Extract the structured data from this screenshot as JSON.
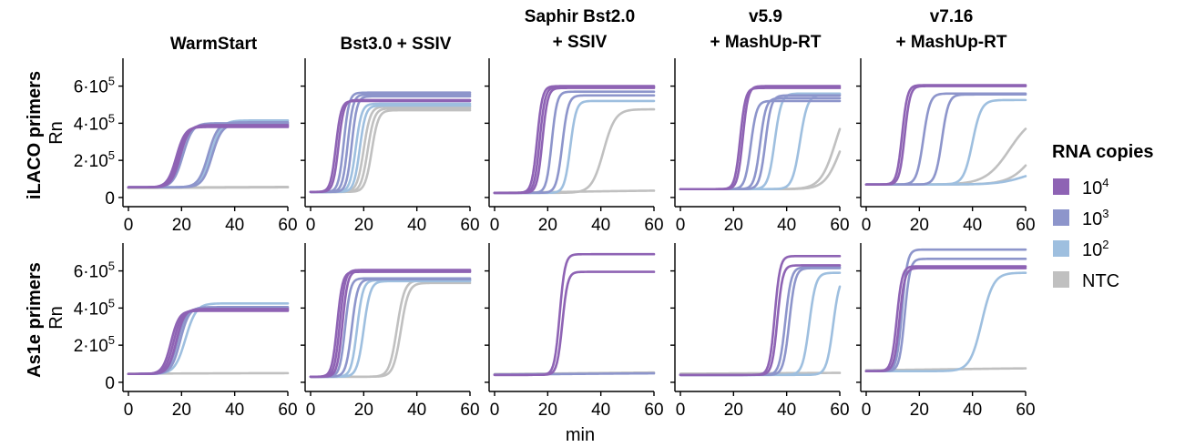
{
  "chart_data": {
    "type": "line",
    "xlabel": "min",
    "ylabel": "Rn",
    "xlim": [
      0,
      60
    ],
    "ylim": [
      -20000,
      750000
    ],
    "x_ticks": [
      "0",
      "20",
      "40",
      "60"
    ],
    "y_ticks": [
      {
        "value": 0,
        "base": "0",
        "exp": ""
      },
      {
        "value": 200000,
        "base": "2·10",
        "exp": "5"
      },
      {
        "value": 400000,
        "base": "4·10",
        "exp": "5"
      },
      {
        "value": 600000,
        "base": "6·10",
        "exp": "5"
      }
    ],
    "grid": false,
    "legend": {
      "title": "RNA copies",
      "placement": "right",
      "entries": [
        {
          "key": "1e4",
          "base": "10",
          "exp": "4",
          "color": "#8e63b4"
        },
        {
          "key": "1e3",
          "base": "10",
          "exp": "3",
          "color": "#8d95cb"
        },
        {
          "key": "1e2",
          "base": "10",
          "exp": "2",
          "color": "#9ebfdf"
        },
        {
          "key": "NTC",
          "base": "NTC",
          "exp": "",
          "color": "#c0c0c0"
        }
      ]
    },
    "columns": [
      {
        "title": [
          "WarmStart"
        ]
      },
      {
        "title": [
          "Bst3.0 + SSIV"
        ]
      },
      {
        "title": [
          "Saphir Bst2.0",
          "+ SSIV"
        ]
      },
      {
        "title": [
          "v5.9",
          "+ MashUp-RT"
        ]
      },
      {
        "title": [
          "v7.16",
          "+ MashUp-RT"
        ]
      }
    ],
    "rows": [
      "iLACO primers",
      "As1e primers"
    ],
    "panels": [
      {
        "row": 0,
        "col": 0,
        "curves": [
          {
            "g": "1e4",
            "base": 55000,
            "top": 380000,
            "mid": 18.0,
            "k": 0.6
          },
          {
            "g": "1e4",
            "base": 55000,
            "top": 385000,
            "mid": 18.8,
            "k": 0.6
          },
          {
            "g": "1e4",
            "base": 55000,
            "top": 390000,
            "mid": 19.5,
            "k": 0.6
          },
          {
            "g": "1e3",
            "base": 55000,
            "top": 400000,
            "mid": 20.5,
            "k": 0.55
          },
          {
            "g": "1e3",
            "base": 55000,
            "top": 405000,
            "mid": 30.0,
            "k": 0.55
          },
          {
            "g": "1e3",
            "base": 55000,
            "top": 395000,
            "mid": 31.5,
            "k": 0.55
          },
          {
            "g": "1e2",
            "base": 55000,
            "top": 415000,
            "mid": 31.0,
            "k": 0.5
          },
          {
            "g": "NTC",
            "base": 52000,
            "top": 58000,
            "mid": 30,
            "k": 0.05
          },
          {
            "g": "NTC",
            "base": 50000,
            "top": 56000,
            "mid": 30,
            "k": 0.05
          }
        ]
      },
      {
        "row": 0,
        "col": 1,
        "curves": [
          {
            "g": "1e4",
            "base": 30000,
            "top": 520000,
            "mid": 9.5,
            "k": 1.0
          },
          {
            "g": "1e4",
            "base": 30000,
            "top": 525000,
            "mid": 10.5,
            "k": 1.0
          },
          {
            "g": "1e3",
            "base": 30000,
            "top": 565000,
            "mid": 12.5,
            "k": 1.0
          },
          {
            "g": "1e3",
            "base": 30000,
            "top": 555000,
            "mid": 14.0,
            "k": 1.0
          },
          {
            "g": "1e3",
            "base": 30000,
            "top": 545000,
            "mid": 15.5,
            "k": 1.0
          },
          {
            "g": "1e2",
            "base": 30000,
            "top": 505000,
            "mid": 17.0,
            "k": 0.9
          },
          {
            "g": "1e2",
            "base": 30000,
            "top": 495000,
            "mid": 18.5,
            "k": 0.9
          },
          {
            "g": "NTC",
            "base": 30000,
            "top": 490000,
            "mid": 20.0,
            "k": 0.8
          },
          {
            "g": "NTC",
            "base": 30000,
            "top": 480000,
            "mid": 21.5,
            "k": 0.8
          },
          {
            "g": "NTC",
            "base": 30000,
            "top": 470000,
            "mid": 23.0,
            "k": 0.8
          }
        ]
      },
      {
        "row": 0,
        "col": 2,
        "curves": [
          {
            "g": "1e4",
            "base": 25000,
            "top": 600000,
            "mid": 16.0,
            "k": 1.0
          },
          {
            "g": "1e4",
            "base": 25000,
            "top": 595000,
            "mid": 17.0,
            "k": 1.0
          },
          {
            "g": "1e4",
            "base": 25000,
            "top": 590000,
            "mid": 18.0,
            "k": 1.0
          },
          {
            "g": "1e3",
            "base": 25000,
            "top": 570000,
            "mid": 21.5,
            "k": 1.0
          },
          {
            "g": "1e3",
            "base": 25000,
            "top": 550000,
            "mid": 25.5,
            "k": 0.9
          },
          {
            "g": "1e2",
            "base": 25000,
            "top": 520000,
            "mid": 28.5,
            "k": 0.9
          },
          {
            "g": "NTC",
            "base": 25000,
            "top": 475000,
            "mid": 41.0,
            "k": 0.45
          },
          {
            "g": "NTC",
            "base": 22000,
            "top": 40000,
            "mid": 30,
            "k": 0.05
          }
        ]
      },
      {
        "row": 0,
        "col": 3,
        "curves": [
          {
            "g": "1e4",
            "base": 45000,
            "top": 590000,
            "mid": 22.5,
            "k": 1.0
          },
          {
            "g": "1e4",
            "base": 45000,
            "top": 600000,
            "mid": 23.5,
            "k": 1.0
          },
          {
            "g": "1e3",
            "base": 45000,
            "top": 520000,
            "mid": 26.5,
            "k": 0.9
          },
          {
            "g": "1e3",
            "base": 45000,
            "top": 535000,
            "mid": 30.0,
            "k": 0.9
          },
          {
            "g": "1e3",
            "base": 45000,
            "top": 550000,
            "mid": 32.0,
            "k": 0.9
          },
          {
            "g": "1e2",
            "base": 45000,
            "top": 560000,
            "mid": 35.5,
            "k": 0.8
          },
          {
            "g": "1e2",
            "base": 45000,
            "top": 555000,
            "mid": 45.0,
            "k": 0.7
          },
          {
            "g": "NTC",
            "base": 45000,
            "top": 560000,
            "mid": 58.5,
            "k": 0.35
          },
          {
            "g": "NTC",
            "base": 45000,
            "top": 450000,
            "mid": 60.0,
            "k": 0.35
          }
        ]
      },
      {
        "row": 0,
        "col": 4,
        "curves": [
          {
            "g": "1e4",
            "base": 70000,
            "top": 605000,
            "mid": 13.5,
            "k": 1.0
          },
          {
            "g": "1e4",
            "base": 70000,
            "top": 600000,
            "mid": 14.5,
            "k": 1.0
          },
          {
            "g": "1e3",
            "base": 70000,
            "top": 560000,
            "mid": 21.5,
            "k": 0.8
          },
          {
            "g": "1e3",
            "base": 70000,
            "top": 555000,
            "mid": 28.5,
            "k": 0.8
          },
          {
            "g": "1e2",
            "base": 70000,
            "top": 525000,
            "mid": 40.0,
            "k": 0.6
          },
          {
            "g": "1e2",
            "base": 70000,
            "top": 160000,
            "mid": 60.0,
            "k": 0.2
          },
          {
            "g": "NTC",
            "base": 70000,
            "top": 450000,
            "mid": 54.0,
            "k": 0.22
          },
          {
            "g": "NTC",
            "base": 70000,
            "top": 420000,
            "mid": 64.0,
            "k": 0.22
          }
        ]
      },
      {
        "row": 1,
        "col": 0,
        "curves": [
          {
            "g": "1e4",
            "base": 45000,
            "top": 385000,
            "mid": 16.0,
            "k": 0.65
          },
          {
            "g": "1e4",
            "base": 45000,
            "top": 390000,
            "mid": 17.0,
            "k": 0.65
          },
          {
            "g": "1e4",
            "base": 45000,
            "top": 395000,
            "mid": 18.0,
            "k": 0.65
          },
          {
            "g": "1e3",
            "base": 45000,
            "top": 400000,
            "mid": 18.5,
            "k": 0.6
          },
          {
            "g": "1e3",
            "base": 45000,
            "top": 405000,
            "mid": 19.5,
            "k": 0.6
          },
          {
            "g": "1e2",
            "base": 45000,
            "top": 425000,
            "mid": 21.5,
            "k": 0.5
          },
          {
            "g": "NTC",
            "base": 46000,
            "top": 50000,
            "mid": 30,
            "k": 0.05
          }
        ]
      },
      {
        "row": 1,
        "col": 1,
        "curves": [
          {
            "g": "1e4",
            "base": 30000,
            "top": 595000,
            "mid": 10.0,
            "k": 1.0
          },
          {
            "g": "1e4",
            "base": 30000,
            "top": 605000,
            "mid": 11.0,
            "k": 1.0
          },
          {
            "g": "1e4",
            "base": 30000,
            "top": 600000,
            "mid": 12.0,
            "k": 1.0
          },
          {
            "g": "1e3",
            "base": 30000,
            "top": 560000,
            "mid": 13.0,
            "k": 1.0
          },
          {
            "g": "1e3",
            "base": 30000,
            "top": 555000,
            "mid": 15.5,
            "k": 0.9
          },
          {
            "g": "1e2",
            "base": 30000,
            "top": 550000,
            "mid": 17.5,
            "k": 0.9
          },
          {
            "g": "1e2",
            "base": 30000,
            "top": 545000,
            "mid": 20.0,
            "k": 0.8
          },
          {
            "g": "NTC",
            "base": 30000,
            "top": 550000,
            "mid": 32.5,
            "k": 0.7
          },
          {
            "g": "NTC",
            "base": 30000,
            "top": 535000,
            "mid": 34.0,
            "k": 0.7
          }
        ]
      },
      {
        "row": 1,
        "col": 2,
        "curves": [
          {
            "g": "1e4",
            "base": 40000,
            "top": 690000,
            "mid": 24.5,
            "k": 1.0
          },
          {
            "g": "1e4",
            "base": 40000,
            "top": 595000,
            "mid": 25.5,
            "k": 1.0
          },
          {
            "g": "1e3",
            "base": 40000,
            "top": 50000,
            "mid": 30,
            "k": 0.05
          },
          {
            "g": "NTC",
            "base": 42000,
            "top": 55000,
            "mid": 30,
            "k": 0.05
          }
        ]
      },
      {
        "row": 1,
        "col": 3,
        "curves": [
          {
            "g": "1e4",
            "base": 40000,
            "top": 680000,
            "mid": 35.5,
            "k": 1.0
          },
          {
            "g": "1e4",
            "base": 40000,
            "top": 630000,
            "mid": 36.5,
            "k": 1.0
          },
          {
            "g": "1e3",
            "base": 40000,
            "top": 620000,
            "mid": 39.5,
            "k": 0.9
          },
          {
            "g": "1e3",
            "base": 40000,
            "top": 615000,
            "mid": 41.0,
            "k": 0.9
          },
          {
            "g": "1e2",
            "base": 40000,
            "top": 590000,
            "mid": 48.5,
            "k": 0.8
          },
          {
            "g": "1e2",
            "base": 40000,
            "top": 580000,
            "mid": 57.5,
            "k": 0.8
          },
          {
            "g": "NTC",
            "base": 45000,
            "top": 52000,
            "mid": 30,
            "k": 0.05
          }
        ]
      },
      {
        "row": 1,
        "col": 4,
        "curves": [
          {
            "g": "1e4",
            "base": 60000,
            "top": 625000,
            "mid": 11.5,
            "k": 1.0
          },
          {
            "g": "1e4",
            "base": 60000,
            "top": 615000,
            "mid": 12.5,
            "k": 1.0
          },
          {
            "g": "1e3",
            "base": 60000,
            "top": 715000,
            "mid": 13.5,
            "k": 1.0
          },
          {
            "g": "1e3",
            "base": 60000,
            "top": 665000,
            "mid": 14.5,
            "k": 1.0
          },
          {
            "g": "1e2",
            "base": 60000,
            "top": 590000,
            "mid": 43.5,
            "k": 0.45
          },
          {
            "g": "NTC",
            "base": 62000,
            "top": 78000,
            "mid": 30,
            "k": 0.05
          }
        ]
      }
    ]
  }
}
